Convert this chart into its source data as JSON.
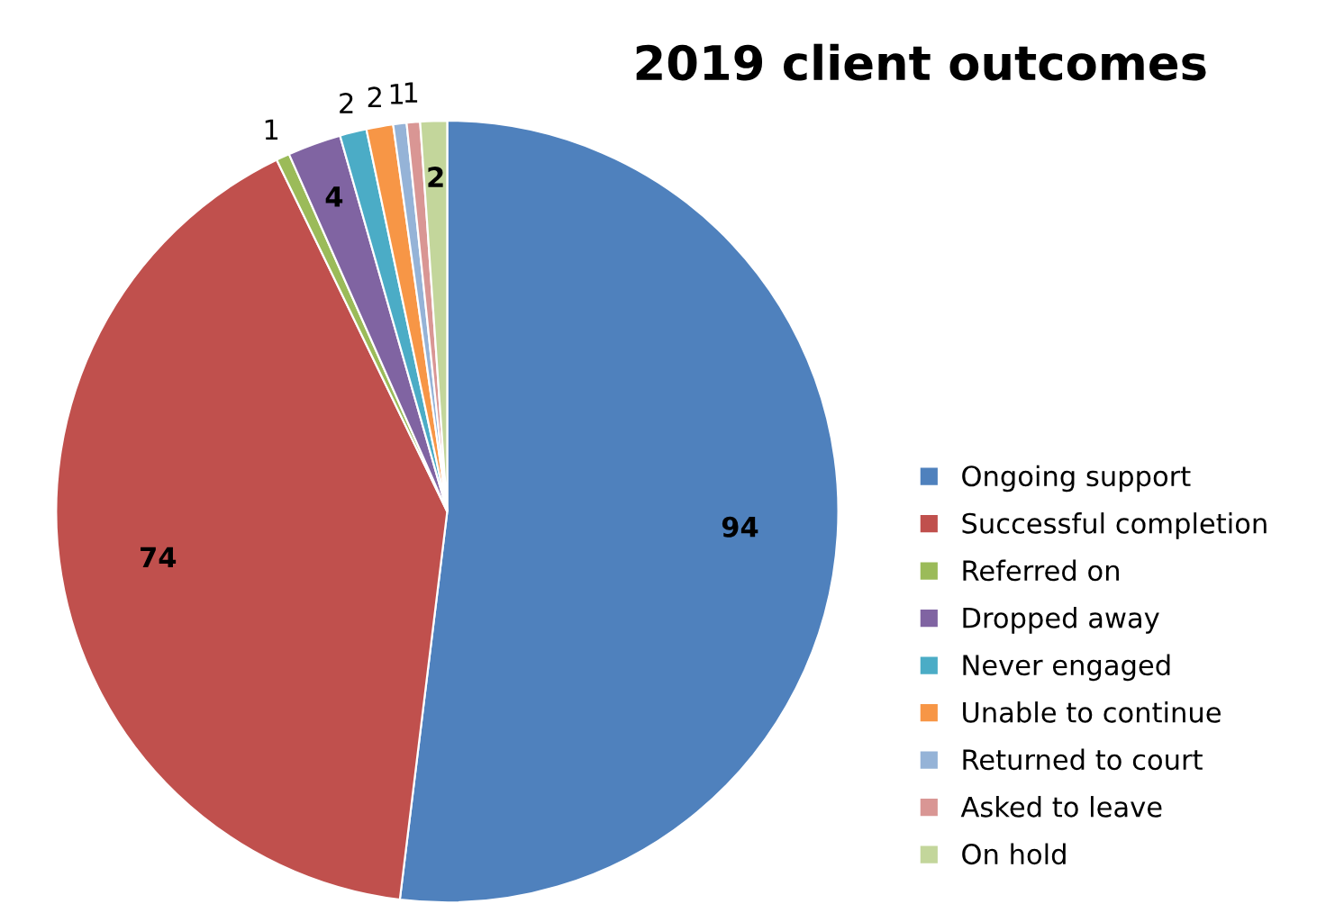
{
  "chart_data": {
    "type": "pie",
    "title": "2019 client outcomes",
    "categories": [
      "Ongoing support",
      "Successful completion",
      "Referred on",
      "Dropped away",
      "Never engaged",
      "Unable to continue",
      "Returned to court",
      "Asked to leave",
      "On hold"
    ],
    "values": [
      94,
      74,
      1,
      4,
      2,
      2,
      1,
      1,
      2
    ],
    "colors": [
      "#4f81bd",
      "#c0504d",
      "#9bbb59",
      "#8064a2",
      "#4bacc6",
      "#f79646",
      "#95b3d7",
      "#d99694",
      "#c3d69b"
    ],
    "data_labels": true,
    "legend": "right"
  }
}
